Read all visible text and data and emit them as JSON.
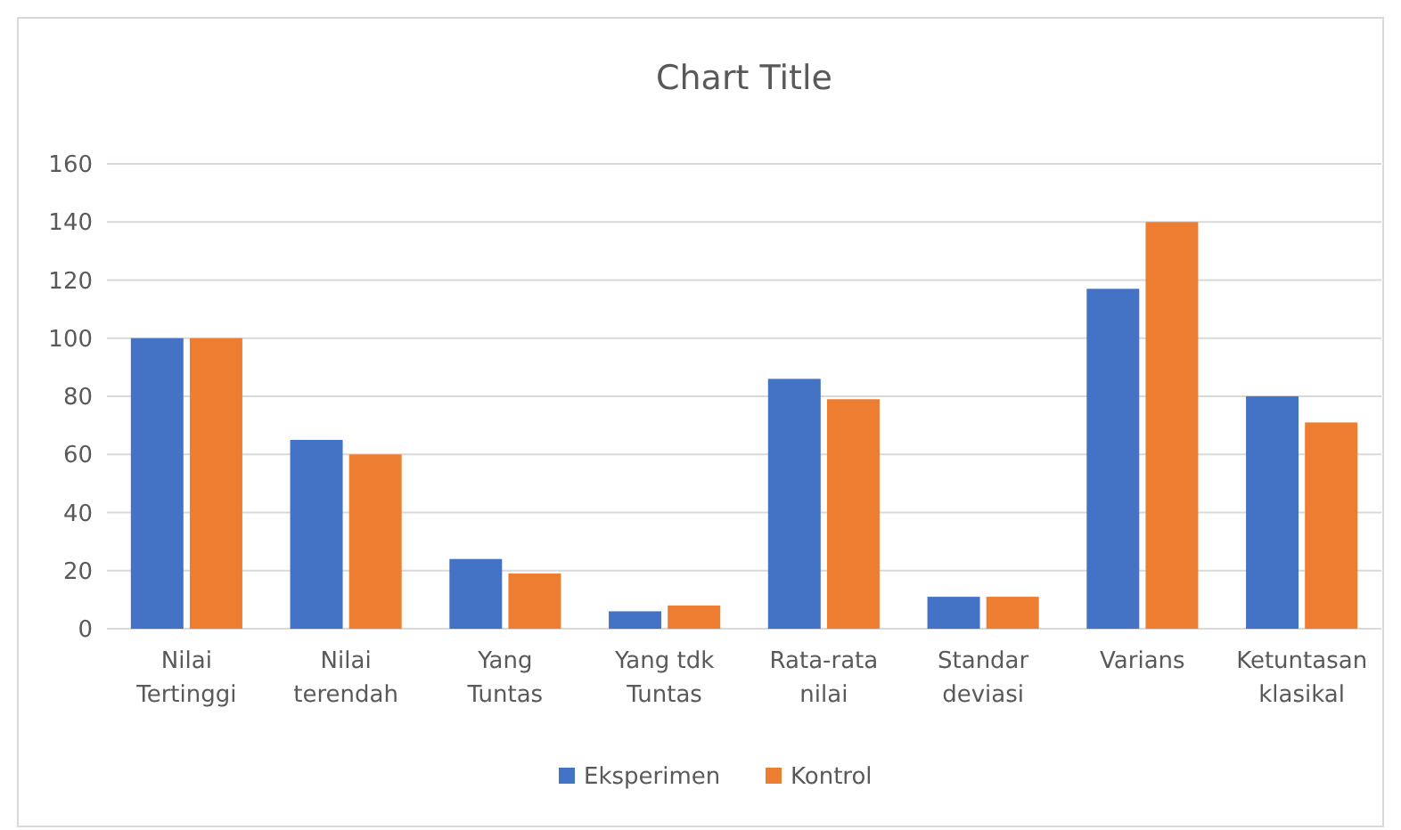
{
  "chart_data": {
    "type": "bar",
    "title": "Chart Title",
    "categories": [
      "Nilai Tertinggi",
      "Nilai terendah",
      "Yang Tuntas",
      "Yang tdk Tuntas",
      "Rata-rata nilai",
      "Standar deviasi",
      "Varians",
      "Ketuntasan klasikal"
    ],
    "series": [
      {
        "name": "Eksperimen",
        "color": "#4472c4",
        "values": [
          100,
          65,
          24,
          6,
          86,
          11,
          117,
          80
        ]
      },
      {
        "name": "Kontrol",
        "color": "#ed7d31",
        "values": [
          100,
          60,
          19,
          8,
          79,
          11,
          140,
          71
        ]
      }
    ],
    "ylim": [
      0,
      160
    ],
    "yticks": [
      0,
      20,
      40,
      60,
      80,
      100,
      120,
      140,
      160
    ],
    "grid": "y",
    "legend": "bottom"
  }
}
